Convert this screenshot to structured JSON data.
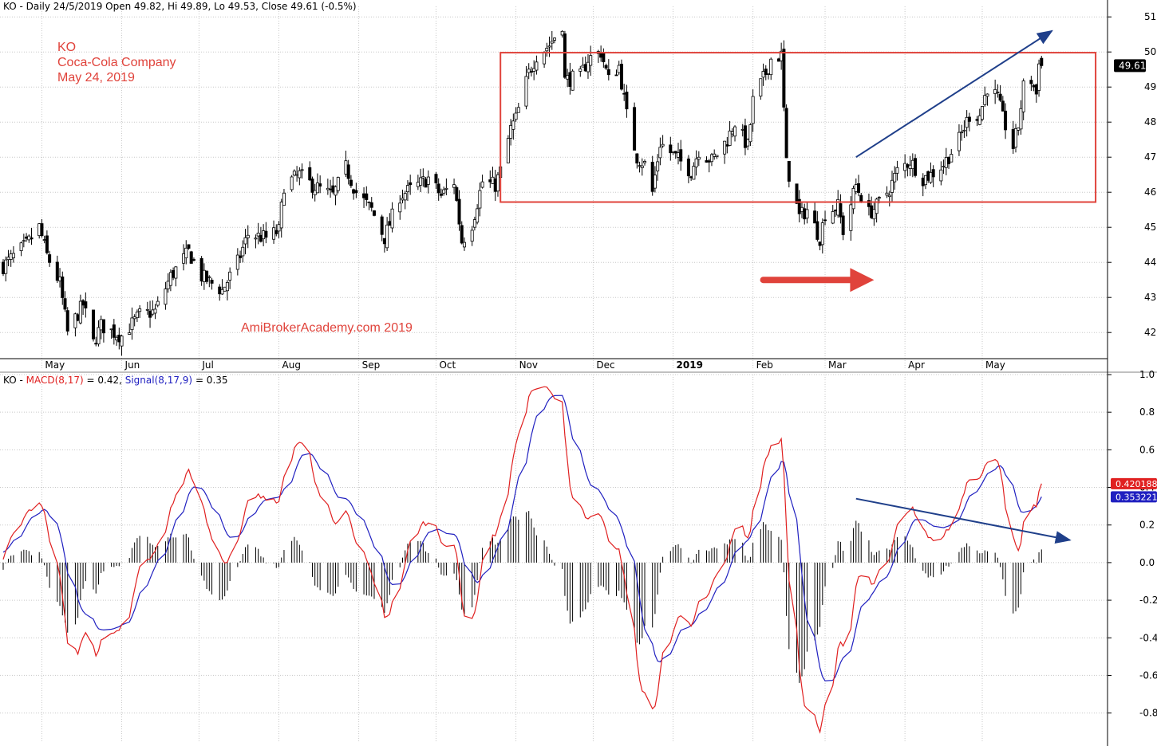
{
  "header": {
    "price_info": "KO - Daily 24/5/2019 Open 49.82, Hi 49.89, Lo 49.53, Close 49.61 (-0.5%)",
    "macd_prefix": "KO - ",
    "macd_label": "MACD(8,17)",
    "macd_value_text": " = 0.42, ",
    "signal_label": "Signal(8,17,9)",
    "signal_value_text": " = 0.35"
  },
  "annotation": {
    "ticker": "KO",
    "company": "Coca-Cola Company",
    "date": "May 24, 2019",
    "watermark": "AmiBrokerAcademy.com  2019"
  },
  "colors": {
    "macd": "#e02020",
    "signal": "#2020c0",
    "annotation": "#e0433b",
    "trendline": "#1f3f8a",
    "grid": "#c8c8c8"
  },
  "chart_data": [
    {
      "type": "candlestick",
      "title": "KO - Daily 24/5/2019 Open 49.82, Hi 49.89, Lo 49.53, Close 49.61 (-0.5%)",
      "ylim": [
        41.3,
        51.3
      ],
      "y_ticks": [
        42,
        43,
        44,
        45,
        46,
        47,
        48,
        49,
        50,
        51
      ],
      "x_range": [
        "2018-04-16",
        "2019-06-18"
      ],
      "x_ticks": [
        {
          "date": "2018-05-01",
          "label": "May"
        },
        {
          "date": "2018-06-01",
          "label": "Jun"
        },
        {
          "date": "2018-07-01",
          "label": "Jul"
        },
        {
          "date": "2018-08-01",
          "label": "Aug"
        },
        {
          "date": "2018-09-01",
          "label": "Sep"
        },
        {
          "date": "2018-10-01",
          "label": "Oct"
        },
        {
          "date": "2018-11-01",
          "label": "Nov"
        },
        {
          "date": "2018-12-01",
          "label": "Dec"
        },
        {
          "date": "2019-01-01",
          "label": "2019"
        },
        {
          "date": "2019-02-01",
          "label": "Feb"
        },
        {
          "date": "2019-03-01",
          "label": "Mar"
        },
        {
          "date": "2019-04-01",
          "label": "Apr"
        },
        {
          "date": "2019-05-01",
          "label": "May"
        }
      ],
      "close_anchors": [
        [
          "2018-04-16",
          43.9
        ],
        [
          "2018-04-25",
          44.5
        ],
        [
          "2018-04-30",
          45.0
        ],
        [
          "2018-05-03",
          44.2
        ],
        [
          "2018-05-08",
          43.4
        ],
        [
          "2018-05-11",
          42.0
        ],
        [
          "2018-05-17",
          42.8
        ],
        [
          "2018-05-21",
          41.7
        ],
        [
          "2018-05-24",
          42.2
        ],
        [
          "2018-05-29",
          42.0
        ],
        [
          "2018-06-01",
          41.9
        ],
        [
          "2018-06-08",
          42.5
        ],
        [
          "2018-06-14",
          42.6
        ],
        [
          "2018-06-20",
          43.6
        ],
        [
          "2018-06-27",
          44.3
        ],
        [
          "2018-07-02",
          43.6
        ],
        [
          "2018-07-10",
          43.2
        ],
        [
          "2018-07-16",
          44.0
        ],
        [
          "2018-07-20",
          44.8
        ],
        [
          "2018-07-27",
          44.7
        ],
        [
          "2018-08-01",
          44.9
        ],
        [
          "2018-08-03",
          46.2
        ],
        [
          "2018-08-09",
          46.5
        ],
        [
          "2018-08-14",
          46.2
        ],
        [
          "2018-08-22",
          45.9
        ],
        [
          "2018-08-27",
          46.7
        ],
        [
          "2018-08-31",
          46.0
        ],
        [
          "2018-09-06",
          45.5
        ],
        [
          "2018-09-11",
          44.7
        ],
        [
          "2018-09-17",
          45.9
        ],
        [
          "2018-09-24",
          46.2
        ],
        [
          "2018-09-28",
          46.4
        ],
        [
          "2018-10-03",
          45.9
        ],
        [
          "2018-10-08",
          46.3
        ],
        [
          "2018-10-11",
          44.6
        ],
        [
          "2018-10-15",
          45.1
        ],
        [
          "2018-10-19",
          46.3
        ],
        [
          "2018-10-24",
          46.2
        ],
        [
          "2018-10-26",
          46.6
        ],
        [
          "2018-10-30",
          47.8
        ],
        [
          "2018-11-01",
          48.1
        ],
        [
          "2018-11-06",
          49.4
        ],
        [
          "2018-11-09",
          49.9
        ],
        [
          "2018-11-14",
          50.2
        ],
        [
          "2018-11-19",
          50.8
        ],
        [
          "2018-11-20",
          49.2
        ],
        [
          "2018-11-26",
          49.3
        ],
        [
          "2018-11-29",
          49.8
        ],
        [
          "2018-12-04",
          50.0
        ],
        [
          "2018-12-07",
          49.2
        ],
        [
          "2018-12-11",
          49.6
        ],
        [
          "2018-12-14",
          48.2
        ],
        [
          "2018-12-18",
          47.0
        ],
        [
          "2018-12-21",
          46.8
        ],
        [
          "2018-12-24",
          46.0
        ],
        [
          "2018-12-27",
          47.4
        ],
        [
          "2019-01-02",
          47.0
        ],
        [
          "2019-01-08",
          46.6
        ],
        [
          "2019-01-11",
          47.2
        ],
        [
          "2019-01-16",
          46.9
        ],
        [
          "2019-01-22",
          47.5
        ],
        [
          "2019-01-25",
          48.0
        ],
        [
          "2019-01-30",
          47.3
        ],
        [
          "2019-02-01",
          48.6
        ],
        [
          "2019-02-06",
          49.4
        ],
        [
          "2019-02-08",
          49.8
        ],
        [
          "2019-02-12",
          49.9
        ],
        [
          "2019-02-14",
          46.8
        ],
        [
          "2019-02-19",
          45.3
        ],
        [
          "2019-02-22",
          45.5
        ],
        [
          "2019-02-27",
          44.7
        ],
        [
          "2019-03-01",
          45.4
        ],
        [
          "2019-03-06",
          45.6
        ],
        [
          "2019-03-08",
          44.9
        ],
        [
          "2019-03-13",
          46.2
        ],
        [
          "2019-03-18",
          45.4
        ],
        [
          "2019-03-21",
          45.6
        ],
        [
          "2019-03-26",
          46.1
        ],
        [
          "2019-03-29",
          46.6
        ],
        [
          "2019-04-03",
          46.9
        ],
        [
          "2019-04-08",
          46.4
        ],
        [
          "2019-04-11",
          46.5
        ],
        [
          "2019-04-16",
          46.8
        ],
        [
          "2019-04-22",
          47.5
        ],
        [
          "2019-04-26",
          48.2
        ],
        [
          "2019-04-30",
          48.2
        ],
        [
          "2019-05-03",
          49.0
        ],
        [
          "2019-05-07",
          48.7
        ],
        [
          "2019-05-09",
          48.1
        ],
        [
          "2019-05-13",
          47.3
        ],
        [
          "2019-05-15",
          47.9
        ],
        [
          "2019-05-17",
          49.0
        ],
        [
          "2019-05-20",
          49.2
        ],
        [
          "2019-05-22",
          48.8
        ],
        [
          "2019-05-23",
          49.82
        ],
        [
          "2019-05-24",
          49.61
        ]
      ],
      "last_bar": {
        "date": "2019-05-24",
        "open": 49.82,
        "high": 49.89,
        "low": 49.53,
        "close": 49.61
      },
      "last_price_label": "49.61",
      "rectangle": {
        "start": "2018-10-26",
        "end": "2019-06-14",
        "top": 49.98,
        "bottom": 45.72
      },
      "trendline": {
        "start": [
          "2019-03-13",
          47.0
        ],
        "end": [
          "2019-05-28",
          50.6
        ]
      },
      "arrow": {
        "start": [
          "2019-02-05",
          43.5
        ],
        "end": [
          "2019-03-20",
          43.5
        ]
      }
    },
    {
      "type": "line",
      "title": "KO - MACD(8,17) = 0.42, Signal(8,17,9) = 0.35",
      "ylim": [
        -0.95,
        1.0
      ],
      "y_ticks": [
        -0.8,
        -0.6,
        -0.4,
        -0.2,
        0.0,
        0.2,
        0.4,
        0.6,
        0.8,
        1.0
      ],
      "series": [
        {
          "name": "MACD(8,17)",
          "value_label": "0.420188",
          "last_value": 0.42
        },
        {
          "name": "Signal(8,17,9)",
          "value_label": "0.353221",
          "last_value": 0.35
        }
      ],
      "histogram": "MACD - Signal",
      "trendline": {
        "start": [
          "2019-03-13",
          0.34
        ],
        "end": [
          "2019-06-04",
          0.12
        ]
      }
    }
  ]
}
